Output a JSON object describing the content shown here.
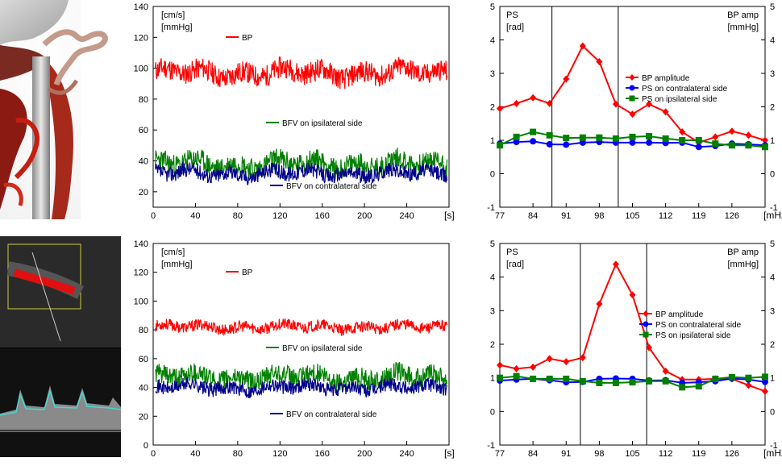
{
  "images": [
    {
      "name": "angiography-3d-image",
      "description_label": "3D vascular reconstruction"
    },
    {
      "name": "ultrasound-doppler-image",
      "description_label": "color Doppler ultrasound"
    }
  ],
  "chart_data": [
    {
      "type": "line",
      "panel": "top-left",
      "title": "",
      "ylabel_lines": [
        "[cm/s]",
        "[mmHg]"
      ],
      "xlabel": "[s]",
      "xlim": [
        0,
        280
      ],
      "ylim": [
        10,
        140
      ],
      "xticks": [
        "0",
        "40",
        "80",
        "120",
        "160",
        "200",
        "240"
      ],
      "xtick_values": [
        0,
        40,
        80,
        120,
        160,
        200,
        240
      ],
      "yticks": [
        "20",
        "40",
        "60",
        "80",
        "100",
        "120",
        "140"
      ],
      "ytick_values": [
        20,
        40,
        60,
        80,
        100,
        120,
        140
      ],
      "series": [
        {
          "name": "BP",
          "color": "#ff0000",
          "mean": 97,
          "amplitude": 7,
          "seed": 11
        },
        {
          "name": "BFV on ipsilateral side",
          "color": "#008000",
          "mean": 38,
          "amplitude": 7,
          "seed": 23
        },
        {
          "name": "BFV on contralateral side",
          "color": "#00008b",
          "mean": 32,
          "amplitude": 5,
          "seed": 37
        }
      ],
      "labels": {
        "bp": "BP",
        "ipsi": "BFV on ipsilateral side",
        "contra": "BFV on contralateral side"
      }
    },
    {
      "type": "line",
      "panel": "top-right",
      "left_axis_label": [
        "PS",
        "[rad]"
      ],
      "right_axis_label": [
        "BP amp",
        "[mmHg]"
      ],
      "xlabel": "[mHz]",
      "xlim": [
        77,
        133
      ],
      "ylim": [
        -1,
        5
      ],
      "xticks": [
        "77",
        "84",
        "91",
        "98",
        "105",
        "112",
        "119",
        "126"
      ],
      "xtick_values": [
        77,
        84,
        91,
        98,
        105,
        112,
        119,
        126
      ],
      "yticks": [
        "-1",
        "0",
        "1",
        "2",
        "3",
        "4",
        "5"
      ],
      "ytick_values": [
        -1,
        0,
        1,
        2,
        3,
        4,
        5
      ],
      "highlight_range": [
        88,
        102
      ],
      "x": [
        77,
        80.5,
        84,
        87.5,
        91,
        94.5,
        98,
        101.5,
        105,
        108.5,
        112,
        115.5,
        119,
        122.5,
        126,
        129.5,
        133
      ],
      "series": [
        {
          "name": "BP amplitude",
          "color": "#ff0000",
          "marker": "diamond",
          "values": [
            1.95,
            2.1,
            2.27,
            2.1,
            2.83,
            3.82,
            3.35,
            2.08,
            1.78,
            2.08,
            1.85,
            1.25,
            0.93,
            1.1,
            1.27,
            1.15,
            1.0
          ]
        },
        {
          "name": "PS on contralateral side",
          "color": "#0000ff",
          "marker": "circle",
          "values": [
            0.9,
            0.95,
            0.97,
            0.88,
            0.87,
            0.93,
            0.95,
            0.93,
            0.93,
            0.93,
            0.92,
            0.93,
            0.8,
            0.83,
            0.9,
            0.88,
            0.85
          ]
        },
        {
          "name": "PS on ipsilateral side",
          "color": "#008000",
          "marker": "square",
          "values": [
            0.85,
            1.1,
            1.25,
            1.15,
            1.07,
            1.08,
            1.08,
            1.05,
            1.1,
            1.12,
            1.05,
            1.0,
            1.0,
            0.9,
            0.85,
            0.85,
            0.8
          ]
        }
      ]
    },
    {
      "type": "line",
      "panel": "bottom-left",
      "ylabel_lines": [
        "[cm/s]",
        "[mmHg]"
      ],
      "xlabel": "[s]",
      "xlim": [
        0,
        280
      ],
      "ylim": [
        0,
        140
      ],
      "xticks": [
        "0",
        "40",
        "80",
        "120",
        "160",
        "200",
        "240"
      ],
      "xtick_values": [
        0,
        40,
        80,
        120,
        160,
        200,
        240
      ],
      "yticks": [
        "0",
        "20",
        "40",
        "60",
        "80",
        "100",
        "120",
        "140"
      ],
      "ytick_values": [
        0,
        20,
        40,
        60,
        80,
        100,
        120,
        140
      ],
      "series": [
        {
          "name": "BP",
          "color": "#ff0000",
          "mean": 82,
          "amplitude": 4,
          "seed": 53
        },
        {
          "name": "BFV on ipsilateral side",
          "color": "#008000",
          "mean": 47,
          "amplitude": 7,
          "seed": 61
        },
        {
          "name": "BFV on contralateral side",
          "color": "#00008b",
          "mean": 40,
          "amplitude": 5,
          "seed": 71
        }
      ],
      "labels": {
        "bp": "BP",
        "ipsi": "BFV on ipsilateral side",
        "contra": "BFV on contralateral side"
      }
    },
    {
      "type": "line",
      "panel": "bottom-right",
      "left_axis_label": [
        "PS",
        "[rad]"
      ],
      "right_axis_label": [
        "BP amp",
        "[mmHg]"
      ],
      "xlabel": "[mHz]",
      "xlim": [
        77,
        133
      ],
      "ylim": [
        -1,
        5
      ],
      "xticks": [
        "77",
        "84",
        "91",
        "98",
        "105",
        "112",
        "119",
        "126"
      ],
      "xtick_values": [
        77,
        84,
        91,
        98,
        105,
        112,
        119,
        126
      ],
      "yticks": [
        "-1",
        "0",
        "1",
        "2",
        "3",
        "4",
        "5"
      ],
      "ytick_values": [
        -1,
        0,
        1,
        2,
        3,
        4,
        5
      ],
      "highlight_range": [
        94,
        108
      ],
      "x": [
        77,
        80.5,
        84,
        87.5,
        91,
        94.5,
        98,
        101.5,
        105,
        108.5,
        112,
        115.5,
        119,
        122.5,
        126,
        129.5,
        133
      ],
      "series": [
        {
          "name": "BP amplitude",
          "color": "#ff0000",
          "marker": "diamond",
          "values": [
            1.38,
            1.27,
            1.32,
            1.57,
            1.48,
            1.6,
            3.2,
            4.38,
            3.47,
            1.9,
            1.2,
            0.95,
            0.95,
            0.97,
            0.97,
            0.78,
            0.6
          ]
        },
        {
          "name": "PS on contralateral side",
          "color": "#0000ff",
          "marker": "circle",
          "values": [
            0.92,
            0.95,
            0.97,
            0.93,
            0.87,
            0.88,
            0.97,
            0.98,
            0.97,
            0.92,
            0.93,
            0.85,
            0.87,
            0.9,
            0.98,
            0.95,
            0.88
          ]
        },
        {
          "name": "PS on ipsilateral side",
          "color": "#008000",
          "marker": "square",
          "values": [
            1.0,
            1.05,
            0.97,
            0.97,
            0.97,
            0.9,
            0.85,
            0.85,
            0.87,
            0.9,
            0.9,
            0.72,
            0.75,
            0.97,
            1.02,
            1.0,
            1.03
          ]
        }
      ]
    }
  ]
}
